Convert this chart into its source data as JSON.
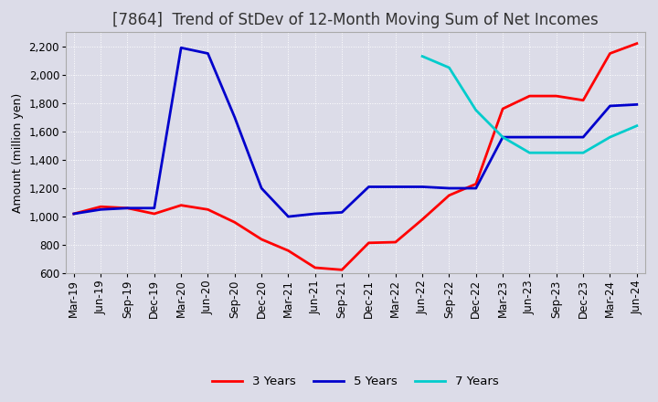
{
  "title": "[7864]  Trend of StDev of 12-Month Moving Sum of Net Incomes",
  "ylabel": "Amount (million yen)",
  "ylim": [
    600,
    2300
  ],
  "yticks": [
    600,
    800,
    1000,
    1200,
    1400,
    1600,
    1800,
    2000,
    2200
  ],
  "x_labels": [
    "Mar-19",
    "Jun-19",
    "Sep-19",
    "Dec-19",
    "Mar-20",
    "Jun-20",
    "Sep-20",
    "Dec-20",
    "Mar-21",
    "Jun-21",
    "Sep-21",
    "Dec-21",
    "Mar-22",
    "Jun-22",
    "Sep-22",
    "Dec-22",
    "Mar-23",
    "Jun-23",
    "Sep-23",
    "Dec-23",
    "Mar-24",
    "Jun-24"
  ],
  "series": {
    "3 Years": {
      "color": "#ff0000",
      "data": [
        1020,
        1070,
        1060,
        1020,
        1080,
        1050,
        960,
        840,
        760,
        640,
        625,
        815,
        820,
        980,
        1150,
        1230,
        1760,
        1850,
        1850,
        1820,
        2150,
        2220
      ]
    },
    "5 Years": {
      "color": "#0000cc",
      "data": [
        1020,
        1050,
        1060,
        1060,
        2190,
        2150,
        1700,
        1200,
        1000,
        1020,
        1030,
        1210,
        1210,
        1210,
        1200,
        1200,
        1560,
        1560,
        1560,
        1560,
        1780,
        1790
      ]
    },
    "7 Years": {
      "color": "#00cccc",
      "data": [
        null,
        null,
        null,
        null,
        null,
        null,
        null,
        null,
        null,
        null,
        null,
        null,
        null,
        2130,
        2050,
        1750,
        1560,
        1450,
        1450,
        1450,
        1560,
        1640
      ]
    },
    "10 Years": {
      "color": "#006600",
      "data": [
        null,
        null,
        null,
        null,
        null,
        null,
        null,
        null,
        null,
        null,
        null,
        null,
        null,
        null,
        null,
        null,
        null,
        null,
        null,
        null,
        null,
        null
      ]
    }
  },
  "background_color": "#dcdce8",
  "grid_color": "#ffffff",
  "grid_style": "dotted",
  "title_fontsize": 12,
  "axis_label_fontsize": 9,
  "tick_fontsize": 8.5,
  "legend_fontsize": 9.5
}
